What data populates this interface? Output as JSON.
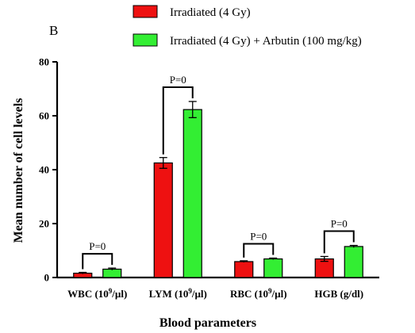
{
  "panel_label": "B",
  "colors": {
    "irradiated": "#ee1111",
    "arbutin": "#33ee33",
    "axis": "#000000"
  },
  "chart_data": {
    "type": "bar",
    "title": "",
    "xlabel": "Blood parameters",
    "ylabel": "Mean number of cell levels",
    "ylim": [
      0,
      80
    ],
    "yticks": [
      "0",
      "20",
      "40",
      "60",
      "80"
    ],
    "categories": [
      {
        "base": "WBC (10",
        "sup": "9",
        "rest": "/µl)"
      },
      {
        "base": "LYM (10",
        "sup": "9",
        "rest": "/µl)"
      },
      {
        "base": "RBC (10",
        "sup": "9",
        "rest": "/µl)"
      },
      {
        "base": "HGB (g/dl)",
        "sup": "",
        "rest": ""
      }
    ],
    "series": [
      {
        "name": "Irradiated (4 Gy)",
        "values": [
          1.6,
          42.5,
          5.9,
          6.9
        ],
        "errors": [
          0.3,
          2.0,
          0.3,
          0.9
        ]
      },
      {
        "name": "Irradiated (4 Gy) + Arbutin (100 mg/kg)",
        "values": [
          3.1,
          62.3,
          6.9,
          11.5
        ],
        "errors": [
          0.4,
          3.0,
          0.3,
          0.4
        ]
      }
    ],
    "annotations": [
      "P=0",
      "P=0",
      "P=0",
      "P=0"
    ],
    "legend_position": "top"
  }
}
